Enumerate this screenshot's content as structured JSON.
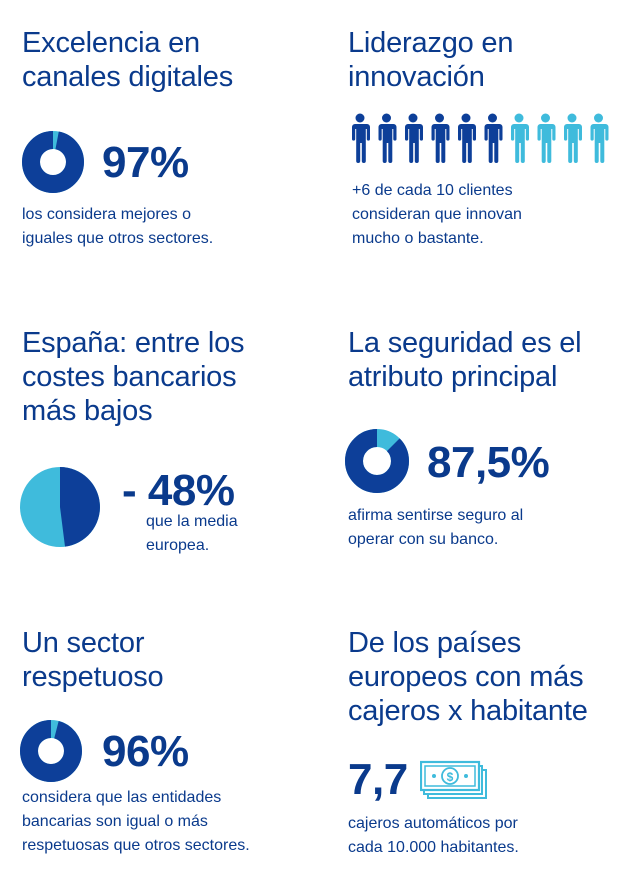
{
  "colors": {
    "dark_blue": "#0d3f99",
    "light_blue": "#3fbbdc",
    "text": "#0a3a8c"
  },
  "blocks": [
    {
      "title_l1": "Excelencia en",
      "title_l2": "canales digitales",
      "stat": "97%",
      "desc_l1": "los considera mejores o",
      "desc_l2": "iguales que otros sectores.",
      "donut_share": 0.97
    },
    {
      "title_l1": "Liderazgo en",
      "title_l2": "innovación",
      "people_total": 10,
      "people_highlighted": 6,
      "desc_l1": "+6 de cada 10 clientes",
      "desc_l2": "consideran que innovan",
      "desc_l3": "mucho o bastante."
    },
    {
      "title_l1": "España: entre los",
      "title_l2": "costes bancarios",
      "title_l3": "más bajos",
      "stat": "- 48%",
      "desc_l1": "que la media",
      "desc_l2": "europea.",
      "pie_share": 0.48
    },
    {
      "title_l1": "La seguridad es el",
      "title_l2": "atributo principal",
      "stat": "87,5%",
      "desc_l1": "afirma sentirse seguro al",
      "desc_l2": "operar con su banco.",
      "donut_share": 0.875
    },
    {
      "title_l1": "Un sector",
      "title_l2": "respetuoso",
      "stat": "96%",
      "desc_l1": "considera que las entidades",
      "desc_l2": "bancarias son igual o más",
      "desc_l3": "respetuosas que otros sectores.",
      "donut_share": 0.96
    },
    {
      "title_l1": "De los países",
      "title_l2": "europeos con más",
      "title_l3": "cajeros x habitante",
      "stat": "7,7",
      "icon": "banknote-icon",
      "desc_l1": "cajeros automáticos por",
      "desc_l2": "cada 10.000 habitantes."
    }
  ]
}
